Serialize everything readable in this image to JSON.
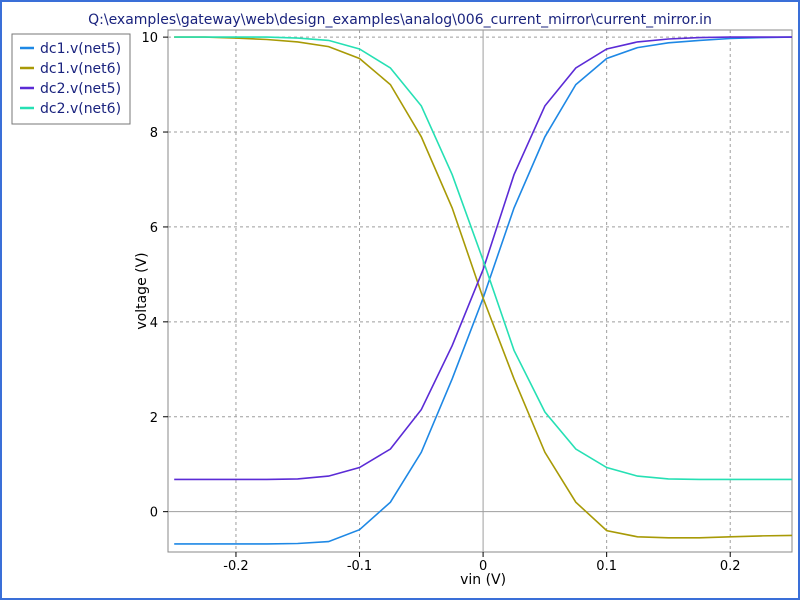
{
  "chart_data": {
    "type": "line",
    "title": "Q:\\examples\\gateway\\web\\design_examples\\analog\\006_current_mirror\\current_mirror.in",
    "xlabel": "vin (V)",
    "ylabel": "voltage (V)",
    "xlim": [
      -0.255,
      0.25
    ],
    "ylim": [
      -0.85,
      10.15
    ],
    "xticks": [
      -0.2,
      -0.1,
      0,
      0.1,
      0.2
    ],
    "xtick_labels": [
      "-0.2",
      "-0.1",
      "0",
      "0.1",
      "0.2"
    ],
    "yticks": [
      0,
      2,
      4,
      6,
      8,
      10
    ],
    "ytick_labels": [
      "0",
      "2",
      "4",
      "6",
      "8",
      "10"
    ],
    "grid": true,
    "legend_position": "top-left",
    "x": [
      -0.25,
      -0.225,
      -0.2,
      -0.175,
      -0.15,
      -0.125,
      -0.1,
      -0.075,
      -0.05,
      -0.025,
      0,
      0.025,
      0.05,
      0.075,
      0.1,
      0.125,
      0.15,
      0.175,
      0.2,
      0.225,
      0.25
    ],
    "series": [
      {
        "name": "dc1.v(net5)",
        "color": "#1e88e5",
        "values": [
          -0.68,
          -0.68,
          -0.68,
          -0.68,
          -0.67,
          -0.63,
          -0.38,
          0.2,
          1.25,
          2.8,
          4.5,
          6.4,
          7.9,
          9.0,
          9.55,
          9.78,
          9.88,
          9.93,
          9.97,
          9.99,
          10.0
        ]
      },
      {
        "name": "dc1.v(net6)",
        "color": "#a89a06",
        "values": [
          10.0,
          10.0,
          9.98,
          9.95,
          9.9,
          9.8,
          9.55,
          9.0,
          7.9,
          6.4,
          4.5,
          2.8,
          1.25,
          0.2,
          -0.4,
          -0.53,
          -0.55,
          -0.55,
          -0.53,
          -0.51,
          -0.5
        ]
      },
      {
        "name": "dc2.v(net5)",
        "color": "#5b2bd6",
        "values": [
          0.68,
          0.68,
          0.68,
          0.68,
          0.69,
          0.75,
          0.93,
          1.32,
          2.15,
          3.5,
          5.1,
          7.1,
          8.55,
          9.35,
          9.75,
          9.9,
          9.96,
          9.99,
          10.0,
          10.0,
          10.0
        ]
      },
      {
        "name": "dc2.v(net6)",
        "color": "#26e0b4",
        "values": [
          10.0,
          10.0,
          10.0,
          10.0,
          9.98,
          9.93,
          9.75,
          9.35,
          8.55,
          7.1,
          5.3,
          3.4,
          2.1,
          1.32,
          0.93,
          0.75,
          0.69,
          0.68,
          0.68,
          0.68,
          0.68
        ]
      }
    ]
  }
}
